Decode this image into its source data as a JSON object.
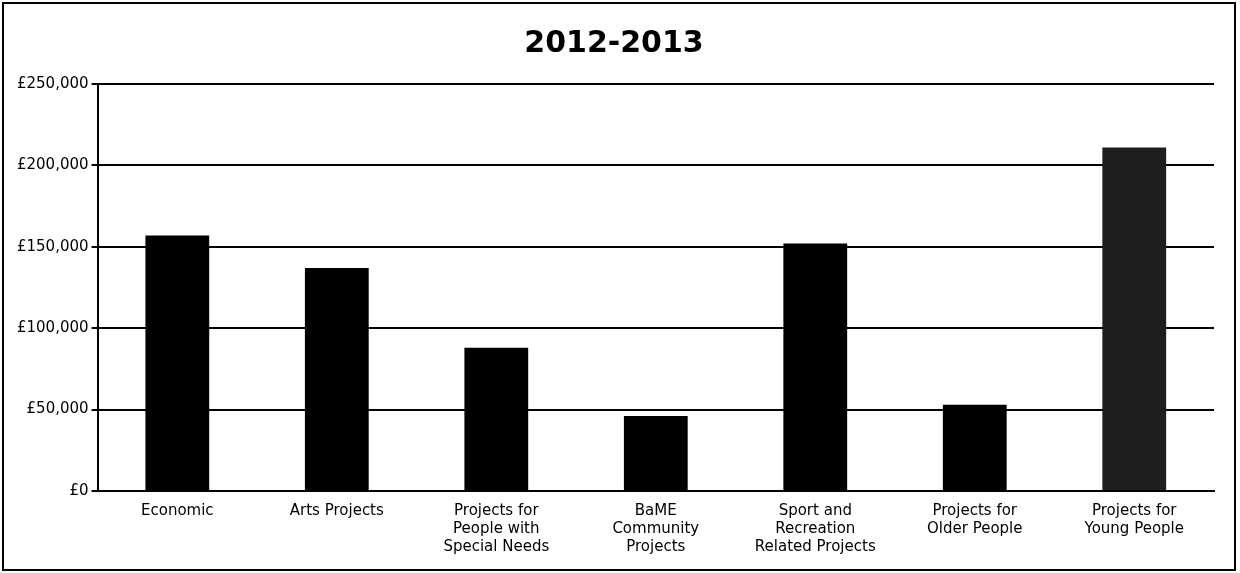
{
  "chart_data": {
    "type": "bar",
    "title": "2012-2013",
    "categories": [
      "Economic",
      "Arts Projects",
      "Projects for People with Special Needs",
      "BaME Community Projects",
      "Sport and Recreation Related Projects",
      "Projects for Older People",
      "Projects for Young People"
    ],
    "values": [
      157000,
      137000,
      88000,
      46000,
      152000,
      53000,
      211000
    ],
    "colors": [
      "#000000",
      "#000000",
      "#000000",
      "#000000",
      "#000000",
      "#000000",
      "#1e1e1e"
    ],
    "ylim": [
      0,
      250000
    ],
    "yticks": [
      {
        "value": 0,
        "label": "£0"
      },
      {
        "value": 50000,
        "label": "£50,000"
      },
      {
        "value": 100000,
        "label": "£100,000"
      },
      {
        "value": 150000,
        "label": "£150,000"
      },
      {
        "value": 200000,
        "label": "£200,000"
      },
      {
        "value": 250000,
        "label": "£250,000"
      }
    ],
    "grid": "y",
    "legend": false
  }
}
